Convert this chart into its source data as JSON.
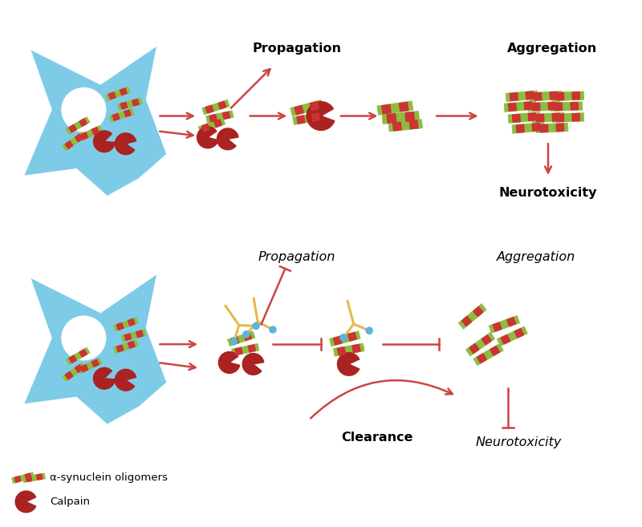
{
  "fig_width": 8.0,
  "fig_height": 6.57,
  "bg_color": "#ffffff",
  "neuron_body_color": "#7ecbe8",
  "neuron_border_color": "#3399cc",
  "oligomer_green": "#8cbd3f",
  "oligomer_red": "#cc3333",
  "calpain_color": "#aa2222",
  "arrow_color": "#cc4444",
  "antibody_gold": "#e8b84b",
  "antibody_blue": "#5ab4dc",
  "propagation_label_top": "Propagation",
  "aggregation_label_top": "Aggregation",
  "neurotoxicity_label_top": "Neurotoxicity",
  "propagation_label_bot": "Propagation",
  "aggregation_label_bot": "Aggregation",
  "neurotoxicity_label_bot": "Neurotoxicity",
  "clearance_label": "Clearance",
  "legend_oligomers": "α-synuclein oligomers",
  "legend_calpain": "Calpain"
}
